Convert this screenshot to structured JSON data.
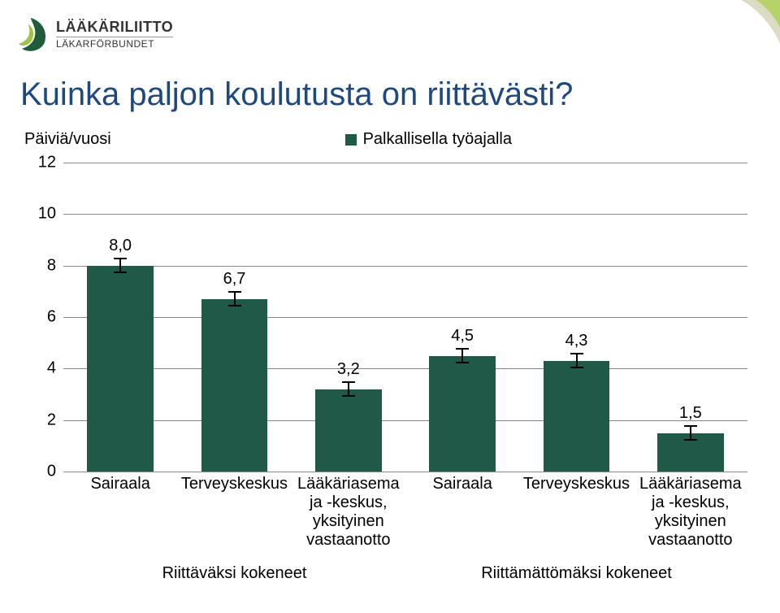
{
  "logo": {
    "line1": "LÄÄKÄRILIITTO",
    "line2": "LÄKARFÖRBUNDET",
    "mark_outer_color": "#1e5c3a",
    "mark_inner_color": "#9ec544"
  },
  "swoosh": {
    "color1": "#b6d36a",
    "color2": "#dcdcc2"
  },
  "title": "Kuinka paljon koulutusta on riittävästi?",
  "chart": {
    "type": "bar",
    "yaxis_title": "Päiviä/vuosi",
    "legend_label": "Palkallisella työajalla",
    "bar_color": "#215948",
    "background_color": "#ffffff",
    "grid_color": "#888888",
    "ylim": [
      0,
      12
    ],
    "ytick_step": 2,
    "yticks": [
      0,
      2,
      4,
      6,
      8,
      10,
      12
    ],
    "bar_width_ratio": 0.58,
    "value_fontsize": 20,
    "tick_fontsize": 20,
    "error_bar_half_height": 0.3,
    "groups": [
      {
        "group_label": "Riittäväksi kokeneet",
        "bars": [
          {
            "cat": "Sairaala",
            "value": 8.0,
            "label": "8,0"
          },
          {
            "cat": "Terveyskeskus",
            "value": 6.7,
            "label": "6,7"
          },
          {
            "cat": "Lääkäriasema\nja -keskus,\nyksityinen\nvastaanotto",
            "value": 3.2,
            "label": "3,2"
          }
        ]
      },
      {
        "group_label": "Riittämättömäksi kokeneet",
        "bars": [
          {
            "cat": "Sairaala",
            "value": 4.5,
            "label": "4,5"
          },
          {
            "cat": "Terveyskeskus",
            "value": 4.3,
            "label": "4,3"
          },
          {
            "cat": "Lääkäriasema\nja -keskus,\nyksityinen\nvastaanotto",
            "value": 1.5,
            "label": "1,5"
          }
        ]
      }
    ]
  }
}
